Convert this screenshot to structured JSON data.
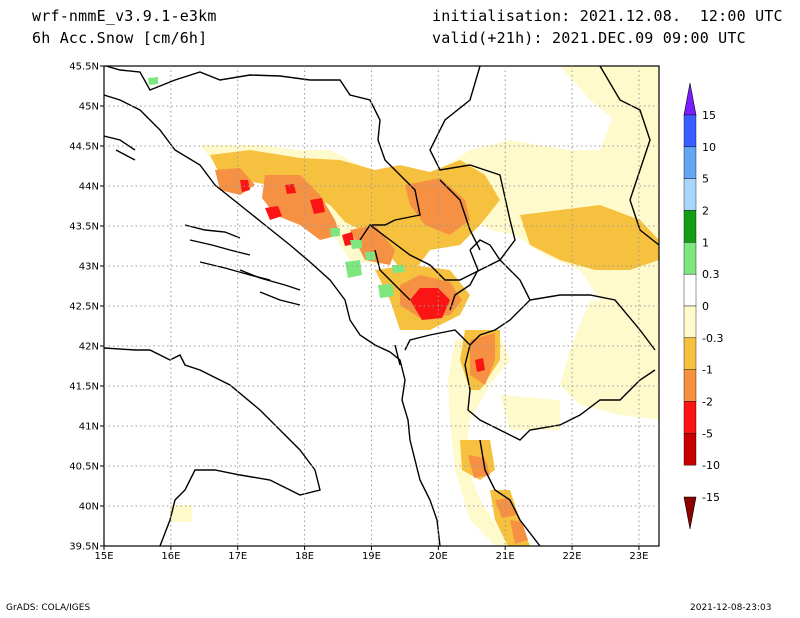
{
  "header": {
    "model": "wrf-nmmE_v3.9.1-e3km",
    "variable": "6h Acc.Snow [cm/6h]",
    "init": "initialisation: 2021.12.08.  12:00 UTC",
    "valid": "valid(+21h): 2021.DEC.09 09:00 UTC"
  },
  "footer": {
    "credit": "GrADS: COLA/IGES",
    "timestamp": "2021-12-08-23:03"
  },
  "chart_data": {
    "type": "heatmap",
    "x_ticks": [
      "15E",
      "16E",
      "17E",
      "18E",
      "19E",
      "20E",
      "21E",
      "22E",
      "23E"
    ],
    "y_ticks": [
      "45.5N",
      "45N",
      "44.5N",
      "44N",
      "43.5N",
      "43N",
      "42.5N",
      "42N",
      "41.5N",
      "41N",
      "40.5N",
      "40N",
      "39.5N"
    ],
    "xlim": [
      15,
      23.3
    ],
    "ylim": [
      39.5,
      45.5
    ],
    "grid": true,
    "colorbar": {
      "labels": [
        "15",
        "10",
        "5",
        "2",
        "1",
        "0.3",
        "0",
        "-0.3",
        "-1",
        "-2",
        "-5",
        "-10",
        "-15"
      ],
      "colors": [
        "#7d1dff",
        "#3c5cff",
        "#64a6f4",
        "#a8d6f8",
        "#139e13",
        "#7ee67e",
        "#ffffff",
        "#fffacb",
        "#f6c13e",
        "#f69043",
        "#fa1414",
        "#c80000",
        "#8c0000"
      ]
    }
  }
}
